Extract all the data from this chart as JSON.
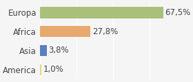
{
  "categories": [
    "America",
    "Asia",
    "Africa",
    "Europa"
  ],
  "values": [
    1.0,
    3.8,
    27.8,
    67.5
  ],
  "labels": [
    "1,0%",
    "3,8%",
    "27,8%",
    "67,5%"
  ],
  "bar_colors": [
    "#e8d87a",
    "#5b7fc1",
    "#e8a96e",
    "#a8c07a"
  ],
  "background_color": "#f5f5f5",
  "xlim": [
    0,
    80
  ],
  "label_fontsize": 8.5,
  "category_fontsize": 8.5
}
